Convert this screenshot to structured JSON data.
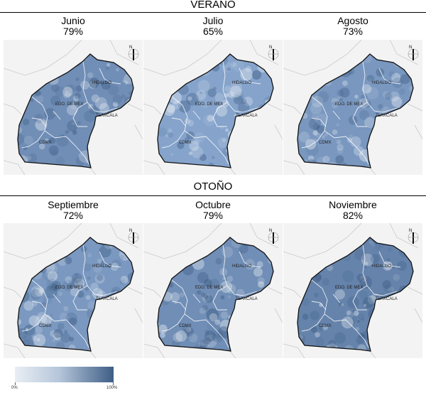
{
  "sections": [
    {
      "title": "VERANO",
      "panels": [
        {
          "month": "Junio",
          "value": "79%"
        },
        {
          "month": "Julio",
          "value": "65%"
        },
        {
          "month": "Agosto",
          "value": "73%"
        }
      ]
    },
    {
      "title": "OTOÑO",
      "panels": [
        {
          "month": "Septiembre",
          "value": "72%"
        },
        {
          "month": "Octubre",
          "value": "79%"
        },
        {
          "month": "Noviembre",
          "value": "82%"
        }
      ]
    }
  ],
  "map_labels": {
    "hidalgo": "HIDALGO",
    "edomex": "EDO. DE MEX",
    "tlaxcala": "TLAXCALA",
    "cdmx": "CDMX",
    "north": "N"
  },
  "legend": {
    "min_label": "0%",
    "max_label": "100%",
    "color_low": "#e9eef4",
    "color_high": "#3e5e86"
  },
  "colors": {
    "base_fill": "#6f8db0",
    "border": "#111111",
    "background_map": "#f3f3f3"
  }
}
